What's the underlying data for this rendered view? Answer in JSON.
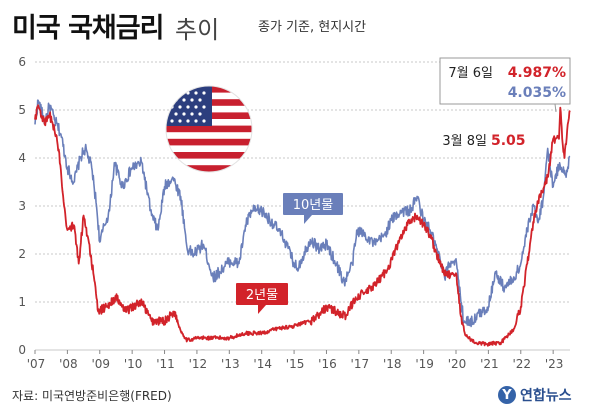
{
  "header": {
    "title": "미국 국채금리",
    "subtitle": "추이",
    "basis": "종가 기준, 현지시간"
  },
  "footer": {
    "source": "자료: 미국연방준비은행(FRED)",
    "logo_text": "연합뉴스"
  },
  "annotations": {
    "latest_date": "7월 6일",
    "latest_2y": "4.987%",
    "latest_10y": "4.035%",
    "mar_date": "3월 8일",
    "mar_2y": "5.05",
    "label_10y": "10년물",
    "label_2y": "2년물"
  },
  "colors": {
    "ten_year": "#6a7fba",
    "two_year": "#d2232a",
    "grid": "#c8c8c8",
    "axis_text": "#555555"
  },
  "icons": {
    "flag": "us-flag-icon"
  },
  "chart_data": {
    "type": "line",
    "xlabel": "",
    "ylabel": "",
    "ylim": [
      0,
      6
    ],
    "y_ticks": [
      0,
      1,
      2,
      3,
      4,
      5,
      6
    ],
    "x_tick_labels": [
      "'07",
      "'08",
      "'09",
      "'10",
      "'11",
      "'12",
      "'13",
      "'14",
      "'15",
      "'16",
      "'17",
      "'18",
      "'19",
      "'20",
      "'21",
      "'22",
      "'23"
    ],
    "x_tick_values": [
      2007,
      2008,
      2009,
      2010,
      2011,
      2012,
      2013,
      2014,
      2015,
      2016,
      2017,
      2018,
      2019,
      2020,
      2021,
      2022,
      2023
    ],
    "xlim": [
      2007.0,
      2023.52
    ],
    "grid": true,
    "series": [
      {
        "name": "10년물",
        "color": "#6a7fba",
        "x": [
          2007.0,
          2007.1,
          2007.3,
          2007.45,
          2007.6,
          2007.8,
          2008.0,
          2008.2,
          2008.4,
          2008.55,
          2008.75,
          2008.9,
          2009.0,
          2009.15,
          2009.3,
          2009.45,
          2009.7,
          2010.0,
          2010.3,
          2010.6,
          2010.8,
          2011.0,
          2011.25,
          2011.5,
          2011.7,
          2011.9,
          2012.2,
          2012.5,
          2012.8,
          2013.0,
          2013.3,
          2013.5,
          2013.7,
          2014.0,
          2014.4,
          2014.7,
          2015.0,
          2015.1,
          2015.5,
          2015.8,
          2016.0,
          2016.3,
          2016.55,
          2016.8,
          2016.95,
          2017.2,
          2017.5,
          2017.8,
          2018.0,
          2018.3,
          2018.6,
          2018.8,
          2019.0,
          2019.2,
          2019.45,
          2019.65,
          2019.8,
          2020.0,
          2020.15,
          2020.25,
          2020.5,
          2020.8,
          2021.0,
          2021.2,
          2021.5,
          2021.8,
          2022.0,
          2022.2,
          2022.4,
          2022.55,
          2022.7,
          2022.83,
          2023.0,
          2023.2,
          2023.4,
          2023.52
        ],
        "values": [
          4.7,
          5.2,
          4.75,
          5.1,
          4.8,
          4.5,
          3.8,
          3.5,
          4.0,
          4.2,
          3.8,
          3.0,
          2.25,
          2.6,
          2.9,
          3.9,
          3.4,
          3.8,
          3.9,
          2.8,
          2.5,
          3.4,
          3.6,
          3.2,
          2.1,
          2.0,
          2.2,
          1.5,
          1.7,
          1.85,
          1.8,
          2.6,
          2.9,
          2.9,
          2.6,
          2.3,
          1.8,
          1.7,
          2.3,
          2.1,
          2.2,
          1.8,
          1.4,
          1.8,
          2.5,
          2.4,
          2.2,
          2.4,
          2.7,
          2.9,
          2.9,
          3.2,
          2.7,
          2.5,
          2.0,
          1.5,
          1.8,
          1.9,
          1.0,
          0.6,
          0.6,
          0.8,
          0.9,
          1.6,
          1.3,
          1.5,
          1.8,
          2.5,
          3.0,
          2.7,
          3.2,
          4.2,
          3.4,
          3.9,
          3.6,
          4.035
        ]
      },
      {
        "name": "2년물",
        "color": "#d2232a",
        "x": [
          2007.0,
          2007.1,
          2007.3,
          2007.45,
          2007.6,
          2007.75,
          2007.9,
          2008.0,
          2008.2,
          2008.35,
          2008.5,
          2008.65,
          2008.8,
          2008.95,
          2009.2,
          2009.5,
          2009.8,
          2010.0,
          2010.3,
          2010.6,
          2011.0,
          2011.3,
          2011.5,
          2011.7,
          2012.0,
          2012.5,
          2013.0,
          2013.5,
          2013.8,
          2014.0,
          2014.5,
          2015.0,
          2015.5,
          2015.8,
          2016.0,
          2016.3,
          2016.6,
          2016.9,
          2017.2,
          2017.5,
          2017.9,
          2018.2,
          2018.5,
          2018.8,
          2019.0,
          2019.2,
          2019.5,
          2019.7,
          2019.9,
          2020.0,
          2020.15,
          2020.3,
          2020.6,
          2021.0,
          2021.4,
          2021.8,
          2022.0,
          2022.2,
          2022.45,
          2022.6,
          2022.83,
          2023.0,
          2023.18,
          2023.22,
          2023.28,
          2023.35,
          2023.45,
          2023.52
        ],
        "values": [
          4.8,
          5.1,
          4.7,
          4.9,
          4.6,
          4.1,
          3.0,
          2.5,
          2.6,
          1.8,
          2.8,
          2.3,
          1.6,
          0.8,
          0.9,
          1.1,
          0.8,
          0.9,
          1.0,
          0.6,
          0.6,
          0.8,
          0.4,
          0.2,
          0.25,
          0.25,
          0.25,
          0.35,
          0.35,
          0.35,
          0.45,
          0.5,
          0.6,
          0.75,
          0.9,
          0.8,
          0.7,
          1.1,
          1.2,
          1.35,
          1.7,
          2.2,
          2.6,
          2.8,
          2.6,
          2.4,
          1.8,
          1.55,
          1.6,
          1.6,
          0.7,
          0.3,
          0.15,
          0.12,
          0.16,
          0.45,
          0.9,
          1.8,
          2.9,
          3.2,
          3.6,
          4.4,
          4.4,
          5.05,
          4.4,
          4.0,
          4.7,
          4.987
        ]
      }
    ]
  }
}
